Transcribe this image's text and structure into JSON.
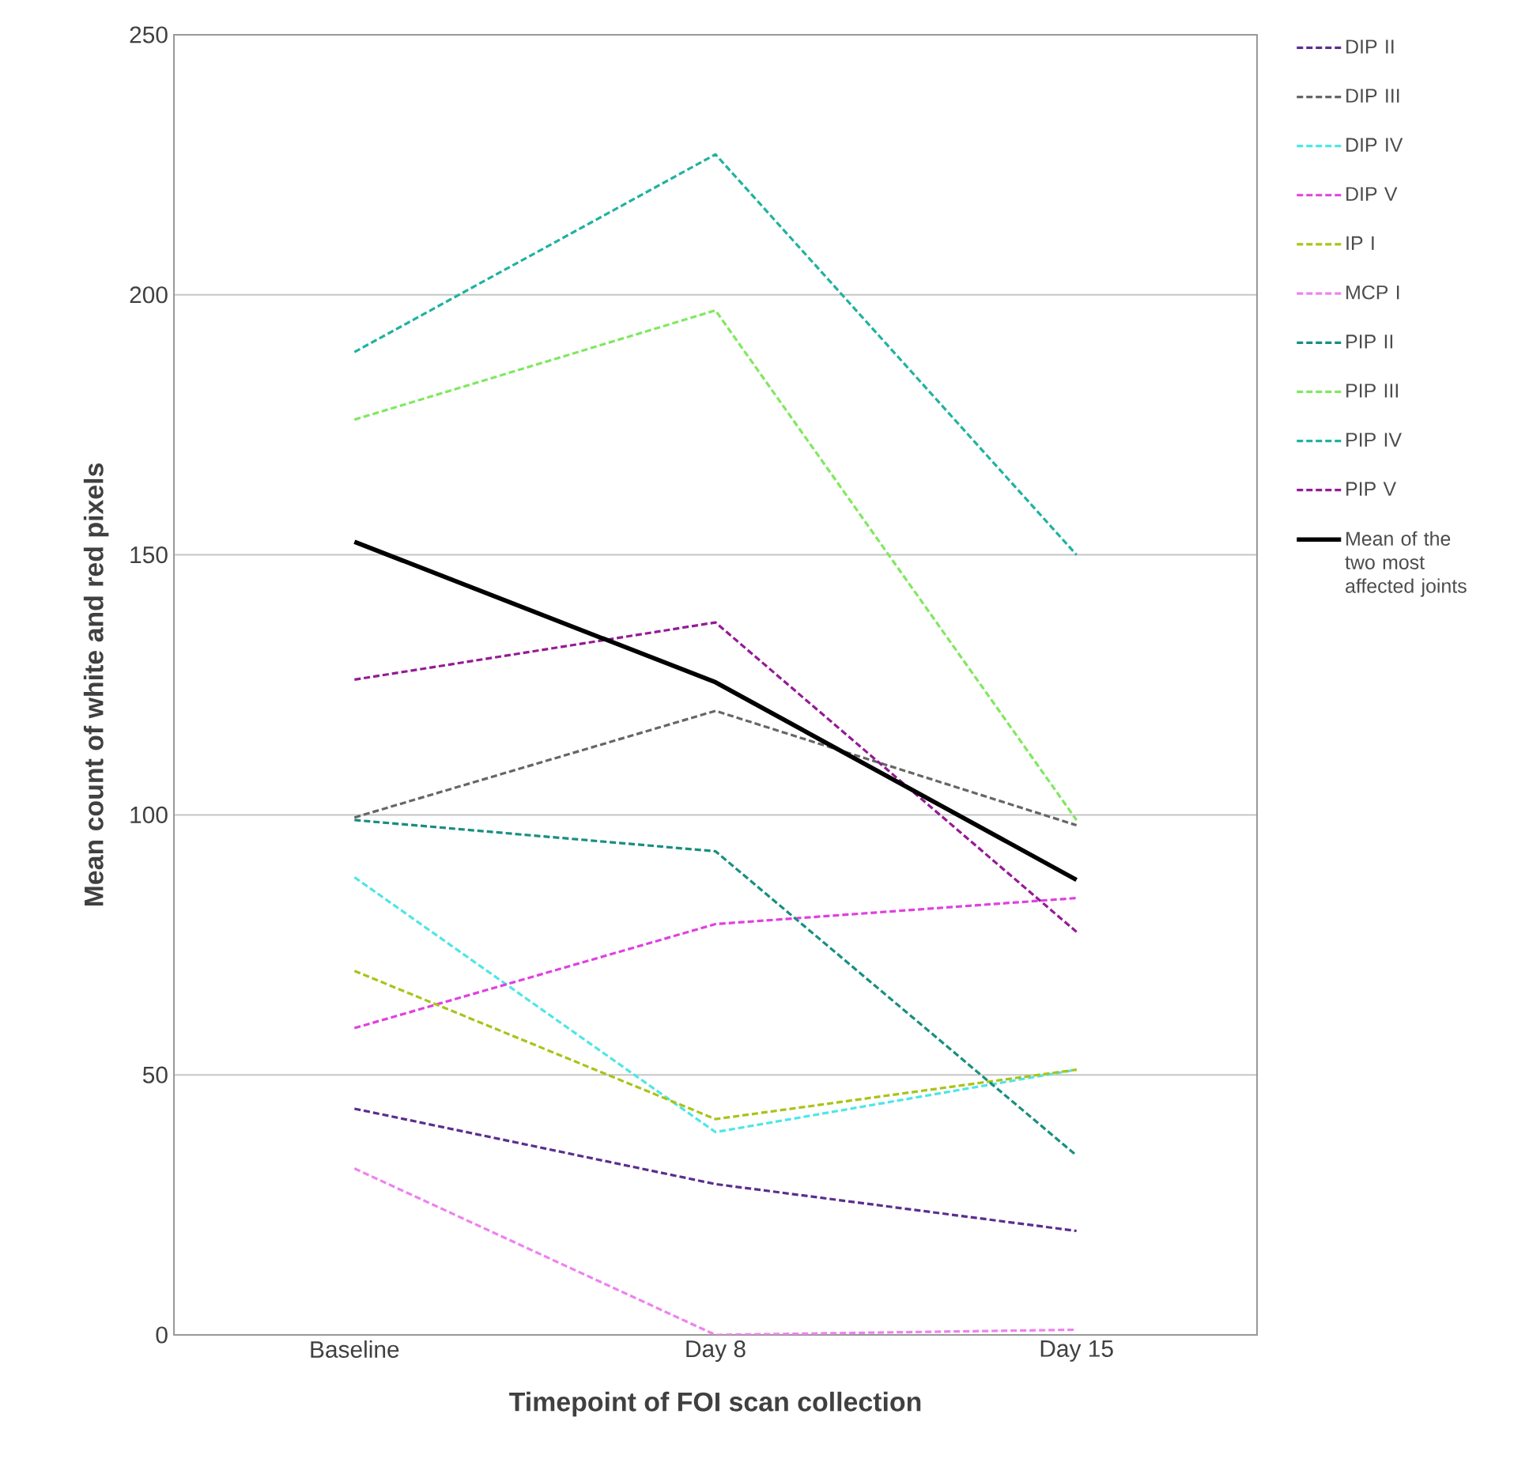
{
  "chart_data": {
    "type": "line",
    "xlabel": "Timepoint of FOI scan collection",
    "ylabel": "Mean count of white and red pixels",
    "categories": [
      "Baseline",
      "Day 8",
      "Day 15"
    ],
    "ylim": [
      0,
      250
    ],
    "yticks": [
      0,
      50,
      100,
      150,
      200,
      250
    ],
    "grid": "y",
    "legend": "right",
    "marker": "none",
    "series": [
      {
        "name": "DIP II",
        "color": "#5b2d8e",
        "line_style": "dashed",
        "values": [
          43.5,
          29,
          20
        ]
      },
      {
        "name": "DIP III",
        "color": "#666666",
        "line_style": "dashed",
        "values": [
          99.5,
          120,
          98
        ]
      },
      {
        "name": "DIP IV",
        "color": "#4fe6e6",
        "line_style": "dashed",
        "values": [
          88,
          39,
          51
        ]
      },
      {
        "name": "DIP V",
        "color": "#e040e0",
        "line_style": "dashed",
        "values": [
          59,
          79,
          84
        ]
      },
      {
        "name": "IP I",
        "color": "#a8c418",
        "line_style": "dashed",
        "values": [
          70,
          41.5,
          51
        ]
      },
      {
        "name": "MCP I",
        "color": "#ee82ee",
        "line_style": "dashed",
        "values": [
          32,
          0,
          1
        ]
      },
      {
        "name": "PIP II",
        "color": "#178f80",
        "line_style": "dashed",
        "values": [
          99,
          93,
          34.5
        ]
      },
      {
        "name": "PIP III",
        "color": "#80e860",
        "line_style": "dashed",
        "values": [
          176,
          197,
          99
        ]
      },
      {
        "name": "PIP IV",
        "color": "#20b2a0",
        "line_style": "dashed",
        "values": [
          189,
          227,
          150
        ]
      },
      {
        "name": "PIP V",
        "color": "#951a95",
        "line_style": "dashed",
        "values": [
          126,
          137,
          77.5
        ]
      },
      {
        "name": "Mean of the two most affected joints",
        "color": "#000000",
        "line_style": "solid",
        "values": [
          152.5,
          125.5,
          87.5
        ]
      }
    ]
  }
}
